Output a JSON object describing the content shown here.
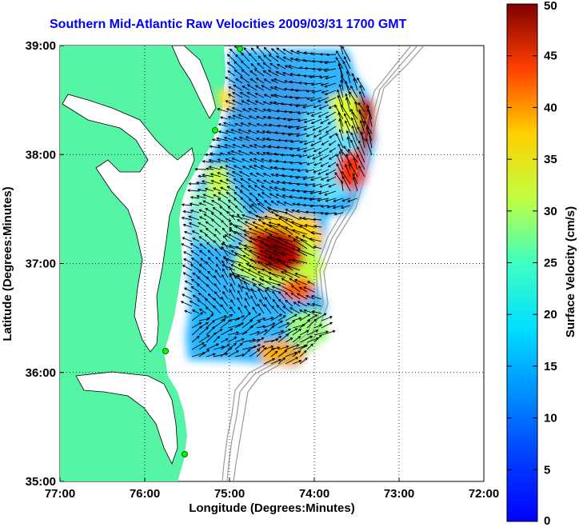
{
  "title": "Southern Mid-Atlantic Raw Velocities 2009/03/31 1700 GMT",
  "map": {
    "xlabel": "Longitude (Degrees:Minutes)",
    "ylabel": "Latitude (Degrees:Minutes)",
    "x_ticks": [
      "77:00",
      "76:00",
      "75:00",
      "74:00",
      "73:00",
      "72:00"
    ],
    "y_ticks": [
      "39:00",
      "38:00",
      "37:00",
      "36:00",
      "35:00"
    ],
    "lon_range": [
      -77,
      -72
    ],
    "lat_range": [
      35,
      39
    ],
    "grid": "dotted",
    "land_color": "#55f5a5",
    "bathymetry_color": "#999999",
    "arrow_color": "#000000",
    "site_marker_color": "#00ff00"
  },
  "colorbar": {
    "label": "Surface Velocity (cm/s)",
    "range": [
      0,
      50
    ],
    "ticks": [
      "0",
      "5",
      "10",
      "15",
      "20",
      "25",
      "30",
      "35",
      "40",
      "45",
      "50"
    ],
    "colormap": "jet"
  }
}
